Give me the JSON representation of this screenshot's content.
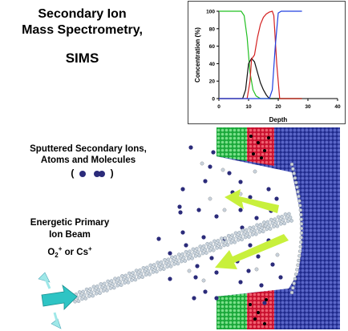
{
  "title": {
    "line1": "Secondary Ion",
    "line2": "Mass Spectrometry,",
    "acronym": "SIMS"
  },
  "labels": {
    "sputtered_line1": "Sputtered Secondary Ions,",
    "sputtered_line2": "Atoms and Molecules",
    "legend_open": "(",
    "legend_close": ")",
    "beam_line1": "Energetic Primary",
    "beam_line2": "Ion Beam",
    "beam_species_o": "O",
    "beam_species_o_sub": "2",
    "beam_species_o_sup": "+",
    "beam_species_or": " or Cs",
    "beam_species_cs_sup": "+"
  },
  "colors": {
    "green_layer": "#1aa83a",
    "red_layer": "#c8102e",
    "blue_substrate": "#1f2a8c",
    "arrow_yellow": "#c8f03c",
    "arrow_cyan": "#2ec4c4",
    "ion_dot": "#2b2b7a",
    "beam_atom": "#c8d2dc"
  },
  "chart_data": {
    "type": "line",
    "xlabel": "Depth",
    "ylabel": "Concentration (%)",
    "xlim": [
      0,
      40
    ],
    "ylim": [
      0,
      100
    ],
    "xticks": [
      0,
      10,
      20,
      30,
      40
    ],
    "yticks": [
      0,
      20,
      40,
      60,
      80,
      100
    ],
    "series": [
      {
        "color": "#22c022",
        "x": [
          0,
          7.5,
          8.5,
          9.5,
          10.5,
          11.5,
          12.5,
          14,
          28
        ],
        "y": [
          100,
          100,
          95,
          70,
          30,
          10,
          3,
          0,
          0
        ]
      },
      {
        "color": "#111111",
        "x": [
          0,
          8,
          9,
          10,
          11,
          12,
          13,
          14,
          15,
          16,
          17,
          28
        ],
        "y": [
          0,
          0,
          10,
          40,
          46,
          42,
          30,
          18,
          10,
          4,
          0,
          0
        ]
      },
      {
        "color": "#d42020",
        "x": [
          0,
          9.5,
          10.5,
          11,
          12,
          13,
          14,
          15,
          16,
          17,
          18,
          18.5,
          19.5,
          20.5,
          28
        ],
        "y": [
          0,
          0,
          20,
          45,
          50,
          70,
          85,
          93,
          97,
          99,
          100,
          95,
          40,
          0,
          0
        ]
      },
      {
        "color": "#2040e0",
        "x": [
          0,
          17,
          18,
          19,
          20,
          21,
          28
        ],
        "y": [
          0,
          0,
          10,
          60,
          98,
          100,
          100
        ]
      }
    ]
  }
}
